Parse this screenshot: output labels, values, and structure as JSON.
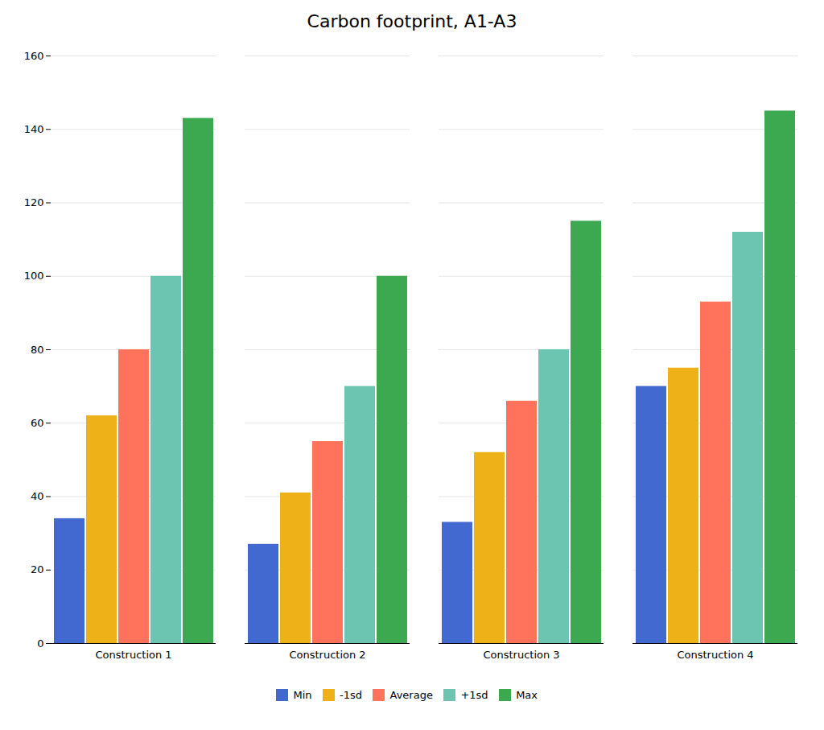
{
  "chart_data": {
    "type": "bar",
    "title": "Carbon footprint, A1-A3",
    "categories": [
      "Construction 1",
      "Construction 2",
      "Construction 3",
      "Construction 4"
    ],
    "series": [
      {
        "name": "Min",
        "values": [
          34,
          27,
          33,
          70
        ]
      },
      {
        "name": "-1sd",
        "values": [
          62,
          41,
          52,
          75
        ]
      },
      {
        "name": "Average",
        "values": [
          80,
          55,
          66,
          93
        ]
      },
      {
        "name": "+1sd",
        "values": [
          100,
          70,
          80,
          112
        ]
      },
      {
        "name": "Max",
        "values": [
          143,
          100,
          115,
          145
        ]
      }
    ],
    "ylim": [
      0,
      160
    ],
    "yticks": [
      0,
      20,
      40,
      60,
      80,
      100,
      120,
      140,
      160
    ],
    "grid": true,
    "legend": "bottom"
  }
}
